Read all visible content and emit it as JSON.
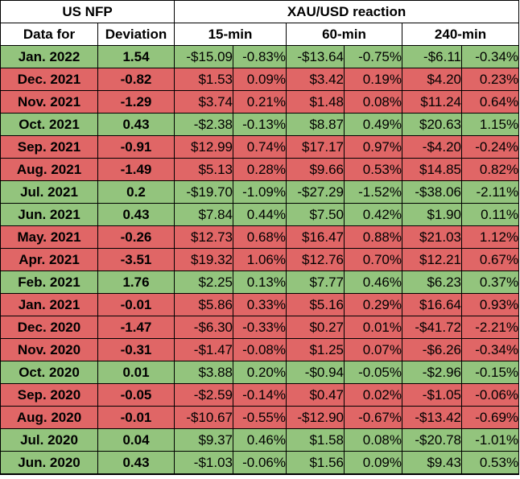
{
  "header": {
    "group_left": "US NFP",
    "group_right": "XAU/USD reaction",
    "col_date": "Data for",
    "col_dev": "Deviation",
    "col_15": "15-min",
    "col_60": "60-min",
    "col_240": "240-min"
  },
  "colors": {
    "positive_row": "#93c47d",
    "negative_row": "#e06666"
  },
  "rows": [
    {
      "date": "Jan. 2022",
      "dev": "1.54",
      "m15": "-$15.09",
      "p15": "-0.83%",
      "m60": "-$13.64",
      "p60": "-0.75%",
      "m240": "-$6.11",
      "p240": "-0.34%",
      "sign": "pos"
    },
    {
      "date": "Dec. 2021",
      "dev": "-0.82",
      "m15": "$1.53",
      "p15": "0.09%",
      "m60": "$3.42",
      "p60": "0.19%",
      "m240": "$4.20",
      "p240": "0.23%",
      "sign": "neg"
    },
    {
      "date": "Nov. 2021",
      "dev": "-1.29",
      "m15": "$3.74",
      "p15": "0.21%",
      "m60": "$1.48",
      "p60": "0.08%",
      "m240": "$11.24",
      "p240": "0.64%",
      "sign": "neg"
    },
    {
      "date": "Oct. 2021",
      "dev": "0.43",
      "m15": "-$2.38",
      "p15": "-0.13%",
      "m60": "$8.87",
      "p60": "0.49%",
      "m240": "$20.63",
      "p240": "1.15%",
      "sign": "pos"
    },
    {
      "date": "Sep. 2021",
      "dev": "-0.91",
      "m15": "$12.99",
      "p15": "0.74%",
      "m60": "$17.17",
      "p60": "0.97%",
      "m240": "-$4.20",
      "p240": "-0.24%",
      "sign": "neg"
    },
    {
      "date": "Aug. 2021",
      "dev": "-1.49",
      "m15": "$5.13",
      "p15": "0.28%",
      "m60": "$9.66",
      "p60": "0.53%",
      "m240": "$14.85",
      "p240": "0.82%",
      "sign": "neg"
    },
    {
      "date": "Jul. 2021",
      "dev": "0.2",
      "m15": "-$19.70",
      "p15": "-1.09%",
      "m60": "-$27.29",
      "p60": "-1.52%",
      "m240": "-$38.06",
      "p240": "-2.11%",
      "sign": "pos"
    },
    {
      "date": "Jun. 2021",
      "dev": "0.43",
      "m15": "$7.84",
      "p15": "0.44%",
      "m60": "$7.50",
      "p60": "0.42%",
      "m240": "$1.90",
      "p240": "0.11%",
      "sign": "pos"
    },
    {
      "date": "May. 2021",
      "dev": "-0.26",
      "m15": "$12.73",
      "p15": "0.68%",
      "m60": "$16.47",
      "p60": "0.88%",
      "m240": "$21.03",
      "p240": "1.12%",
      "sign": "neg"
    },
    {
      "date": "Apr. 2021",
      "dev": "-3.51",
      "m15": "$19.32",
      "p15": "1.06%",
      "m60": "$12.76",
      "p60": "0.70%",
      "m240": "$12.21",
      "p240": "0.67%",
      "sign": "neg"
    },
    {
      "date": "Feb. 2021",
      "dev": "1.76",
      "m15": "$2.25",
      "p15": "0.13%",
      "m60": "$7.77",
      "p60": "0.46%",
      "m240": "$6.23",
      "p240": "0.37%",
      "sign": "pos"
    },
    {
      "date": "Jan. 2021",
      "dev": "-0.01",
      "m15": "$5.86",
      "p15": "0.33%",
      "m60": "$5.16",
      "p60": "0.29%",
      "m240": "$16.64",
      "p240": "0.93%",
      "sign": "neg"
    },
    {
      "date": "Dec. 2020",
      "dev": "-1.47",
      "m15": "-$6.30",
      "p15": "-0.33%",
      "m60": "$0.27",
      "p60": "0.01%",
      "m240": "-$41.72",
      "p240": "-2.21%",
      "sign": "neg"
    },
    {
      "date": "Nov. 2020",
      "dev": "-0.31",
      "m15": "-$1.47",
      "p15": "-0.08%",
      "m60": "$1.25",
      "p60": "0.07%",
      "m240": "-$6.26",
      "p240": "-0.34%",
      "sign": "neg"
    },
    {
      "date": "Oct. 2020",
      "dev": "0.01",
      "m15": "$3.88",
      "p15": "0.20%",
      "m60": "-$0.94",
      "p60": "-0.05%",
      "m240": "-$2.96",
      "p240": "-0.15%",
      "sign": "pos"
    },
    {
      "date": "Sep. 2020",
      "dev": "-0.05",
      "m15": "-$2.59",
      "p15": "-0.14%",
      "m60": "$0.47",
      "p60": "0.02%",
      "m240": "-$1.05",
      "p240": "-0.06%",
      "sign": "neg"
    },
    {
      "date": "Aug. 2020",
      "dev": "-0.01",
      "m15": "-$10.67",
      "p15": "-0.55%",
      "m60": "-$12.90",
      "p60": "-0.67%",
      "m240": "-$13.42",
      "p240": "-0.69%",
      "sign": "neg"
    },
    {
      "date": "Jul. 2020",
      "dev": "0.04",
      "m15": "$9.37",
      "p15": "0.46%",
      "m60": "$1.58",
      "p60": "0.08%",
      "m240": "-$20.78",
      "p240": "-1.01%",
      "sign": "pos"
    },
    {
      "date": "Jun. 2020",
      "dev": "0.43",
      "m15": "-$1.03",
      "p15": "-0.06%",
      "m60": "$1.56",
      "p60": "0.09%",
      "m240": "$9.43",
      "p240": "0.53%",
      "sign": "pos"
    }
  ]
}
